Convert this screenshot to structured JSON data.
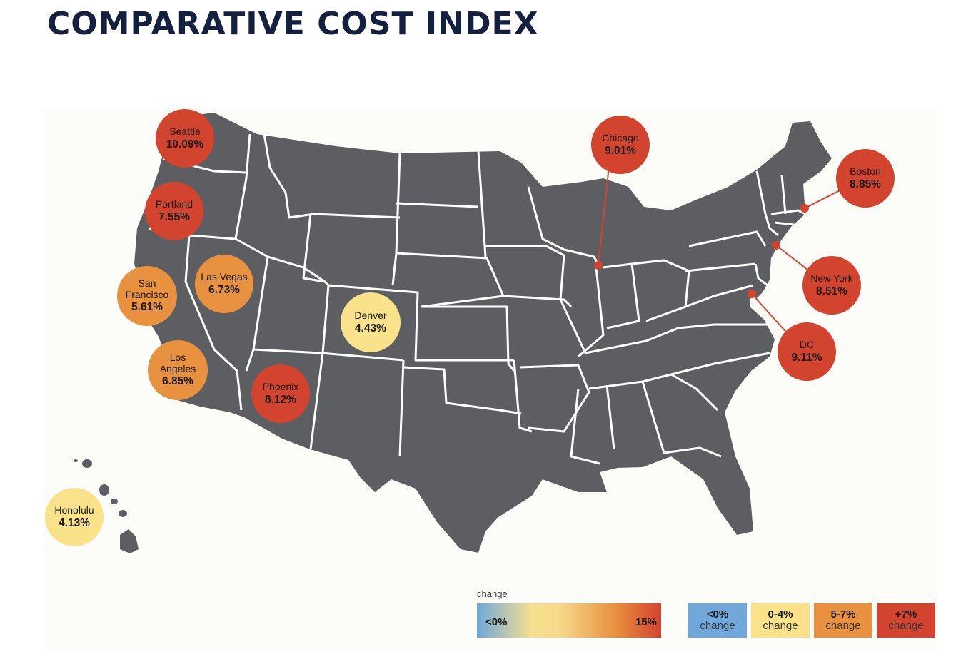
{
  "title": "COMPARATIVE COST INDEX",
  "colors": {
    "land": "#5d5e61",
    "border": "#ffffff",
    "red": "#d3442f",
    "orange": "#e8913f",
    "yellow": "#f9e28a",
    "blue": "#6fa8d9"
  },
  "cities": [
    {
      "name": "Seattle",
      "value": "10.09%",
      "tier": "red"
    },
    {
      "name": "Portland",
      "value": "7.55%",
      "tier": "red"
    },
    {
      "name": "San Francisco",
      "value": "5.61%",
      "tier": "orange"
    },
    {
      "name": "Las Vegas",
      "value": "6.73%",
      "tier": "orange"
    },
    {
      "name": "Los Angeles",
      "value": "6.85%",
      "tier": "orange"
    },
    {
      "name": "Phoenix",
      "value": "8.12%",
      "tier": "red"
    },
    {
      "name": "Denver",
      "value": "4.43%",
      "tier": "yellow"
    },
    {
      "name": "Chicago",
      "value": "9.01%",
      "tier": "red"
    },
    {
      "name": "Boston",
      "value": "8.85%",
      "tier": "red"
    },
    {
      "name": "New York",
      "value": "8.51%",
      "tier": "red"
    },
    {
      "name": "DC",
      "value": "9.11%",
      "tier": "red"
    },
    {
      "name": "Honolulu",
      "value": "4.13%",
      "tier": "yellow"
    }
  ],
  "legend": {
    "gradient_label": "change",
    "gradient_min": "<0%",
    "gradient_max": "15%",
    "buckets": [
      {
        "range": "<0%",
        "label": "change",
        "color": "#6fa8d9"
      },
      {
        "range": "0-4%",
        "label": "change",
        "color": "#f9e28a"
      },
      {
        "range": "5-7%",
        "label": "change",
        "color": "#e8913f"
      },
      {
        "range": "+7%",
        "label": "change",
        "color": "#d3442f"
      }
    ]
  }
}
